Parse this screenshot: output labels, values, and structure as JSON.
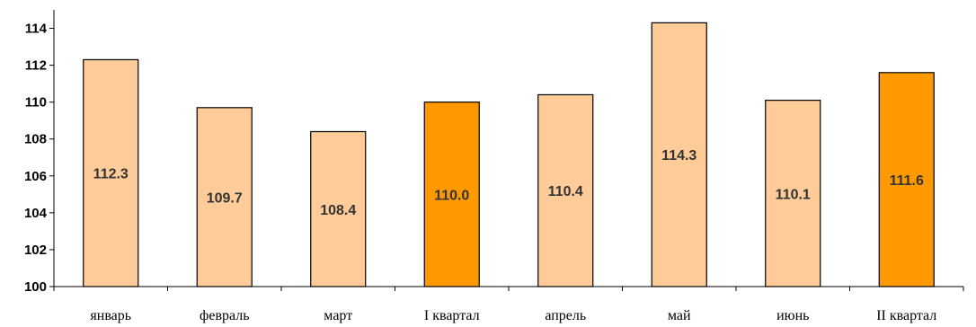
{
  "chart_data": {
    "type": "bar",
    "categories": [
      "январь",
      "февраль",
      "март",
      "I квартал",
      "апрель",
      "май",
      "июнь",
      "II квартал"
    ],
    "values": [
      112.3,
      109.7,
      108.4,
      110.0,
      110.4,
      114.3,
      110.1,
      111.6
    ],
    "value_labels": [
      "112.3",
      "109.7",
      "108.4",
      "110.0",
      "110.4",
      "114.3",
      "110.1",
      "111.6"
    ],
    "highlighted": [
      false,
      false,
      false,
      true,
      false,
      false,
      false,
      true
    ],
    "ylim": [
      100,
      115
    ],
    "yticks": [
      100,
      102,
      104,
      106,
      108,
      110,
      112,
      114
    ],
    "grid": false,
    "legend": "none",
    "title": "",
    "xlabel": "",
    "ylabel": "",
    "colors": {
      "month_bar": "#FFCC99",
      "quarter_bar": "#FF9900",
      "bar_outline": "#000000",
      "axis": "#000000",
      "label_text": "#333333"
    }
  }
}
